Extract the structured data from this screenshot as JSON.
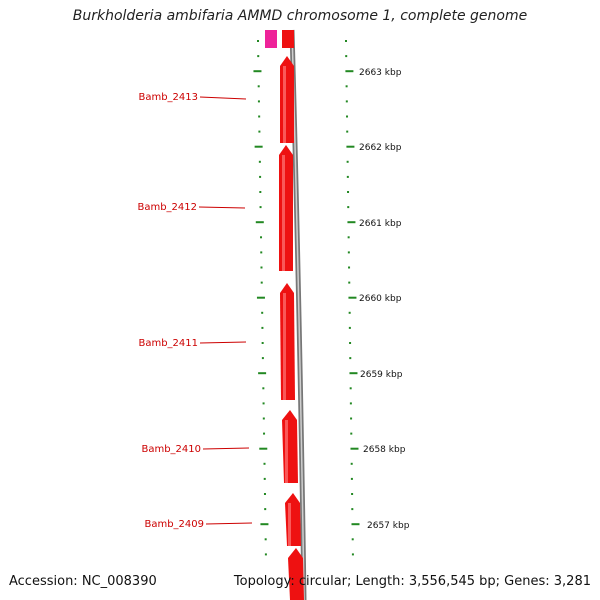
{
  "title": "Burkholderia ambifaria AMMD chromosome 1, complete genome",
  "footer": {
    "accession": "Accession: NC_008390",
    "topology": "Topology: circular; Length: 3,556,545 bp; Genes: 3,281"
  },
  "genes": [
    {
      "label": "Bamb_2413"
    },
    {
      "label": "Bamb_2412"
    },
    {
      "label": "Bamb_2411"
    },
    {
      "label": "Bamb_2410"
    },
    {
      "label": "Bamb_2409"
    }
  ],
  "scale_labels": [
    "2663 kbp",
    "2662 kbp",
    "2661 kbp",
    "2660 kbp",
    "2659 kbp",
    "2658 kbp",
    "2657 kbp"
  ],
  "colors": {
    "gene": "#ee1111",
    "gene_highlight": "#ff6666",
    "gene_other": "#ee2299",
    "backbone": "#888888",
    "ticks": "#228822",
    "label_line": "#cc0000"
  }
}
